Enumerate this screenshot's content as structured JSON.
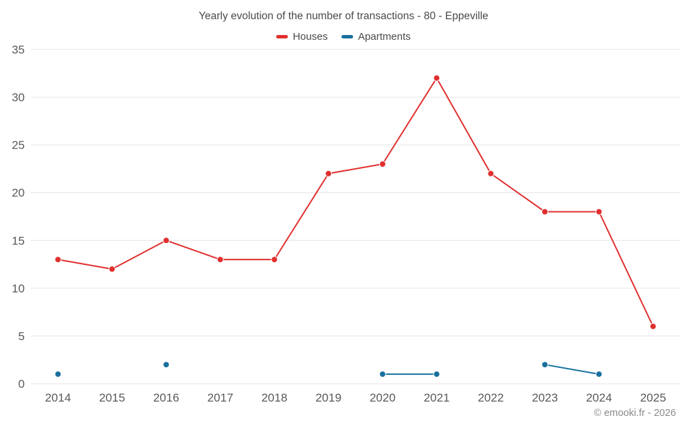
{
  "title": "Yearly evolution of the number of transactions - 80 - Eppeville",
  "footer": "© emooki.fr - 2026",
  "colors": {
    "houses": "#e12f2f",
    "apartments": "#19709f",
    "grid": "#e4e4e4",
    "axis_text": "#595959"
  },
  "chart_data": {
    "type": "line",
    "title": "Yearly evolution of the number of transactions - 80 - Eppeville",
    "categories": [
      "2014",
      "2015",
      "2016",
      "2017",
      "2018",
      "2019",
      "2020",
      "2021",
      "2022",
      "2023",
      "2024",
      "2025"
    ],
    "series": [
      {
        "name": "Houses",
        "color": "#e12f2f",
        "values": [
          13,
          12,
          15,
          13,
          13,
          22,
          23,
          32,
          22,
          18,
          18,
          6
        ]
      },
      {
        "name": "Apartments",
        "color": "#19709f",
        "values": [
          1,
          null,
          2,
          null,
          null,
          null,
          1,
          1,
          null,
          2,
          1,
          null
        ]
      }
    ],
    "ylim": [
      0,
      35
    ],
    "yticks": [
      0,
      5,
      10,
      15,
      20,
      25,
      30,
      35
    ],
    "grid": "horizontal",
    "legend_position": "top"
  }
}
